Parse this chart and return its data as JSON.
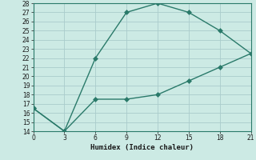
{
  "xlabel": "Humidex (Indice chaleur)",
  "line1_x": [
    0,
    3,
    6,
    9,
    12,
    15,
    18,
    21
  ],
  "line1_y": [
    16.5,
    14,
    22,
    27,
    28,
    27,
    25,
    22.5
  ],
  "line2_x": [
    0,
    3,
    6,
    9,
    12,
    15,
    18,
    21
  ],
  "line2_y": [
    16.5,
    14,
    17.5,
    17.5,
    18,
    19.5,
    21,
    22.5
  ],
  "line_color": "#2a7a6a",
  "bg_color": "#cceae4",
  "grid_color": "#aacccc",
  "ylim": [
    14,
    28
  ],
  "xlim": [
    0,
    21
  ],
  "xticks": [
    0,
    3,
    6,
    9,
    12,
    15,
    18,
    21
  ],
  "yticks": [
    14,
    15,
    16,
    17,
    18,
    19,
    20,
    21,
    22,
    23,
    24,
    25,
    26,
    27,
    28
  ],
  "marker": "D",
  "markersize": 3,
  "tick_fontsize": 5.5,
  "xlabel_fontsize": 6.5,
  "linewidth": 1.0
}
